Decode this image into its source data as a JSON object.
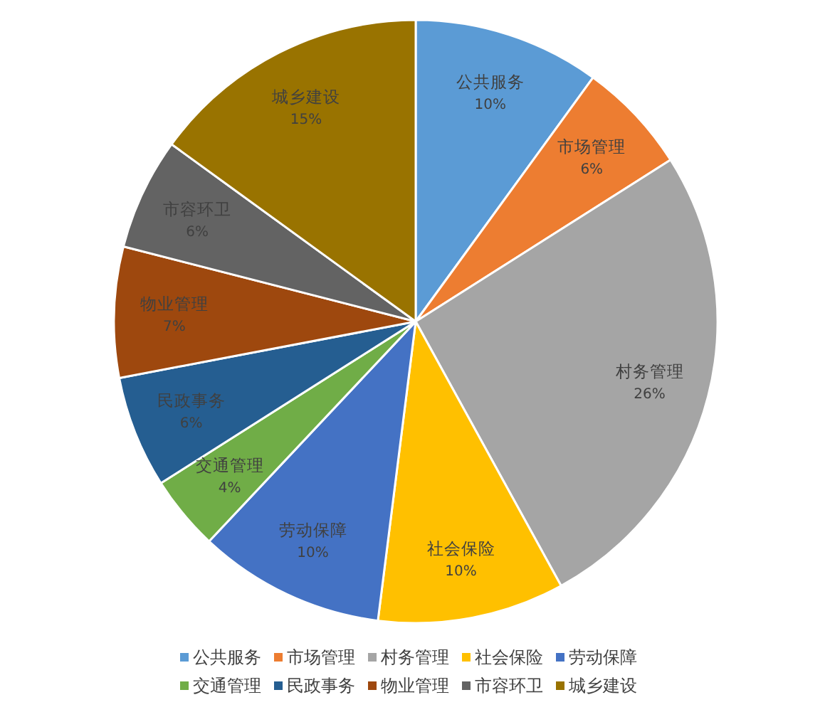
{
  "chart_data": {
    "type": "pie",
    "categories": [
      "公共服务",
      "市场管理",
      "村务管理",
      "社会保险",
      "劳动保障",
      "交通管理",
      "民政事务",
      "物业管理",
      "市容环卫",
      "城乡建设"
    ],
    "values": [
      10,
      6,
      26,
      10,
      10,
      4,
      6,
      7,
      6,
      15
    ],
    "colors": [
      "#5b9bd5",
      "#ed7d31",
      "#a5a5a5",
      "#ffc000",
      "#4472c4",
      "#70ad47",
      "#255e91",
      "#9e480e",
      "#636363",
      "#997300"
    ],
    "value_labels": [
      "10%",
      "6%",
      "26%",
      "10%",
      "10%",
      "4%",
      "6%",
      "7%",
      "6%",
      "15%"
    ],
    "legend": "bottom"
  }
}
